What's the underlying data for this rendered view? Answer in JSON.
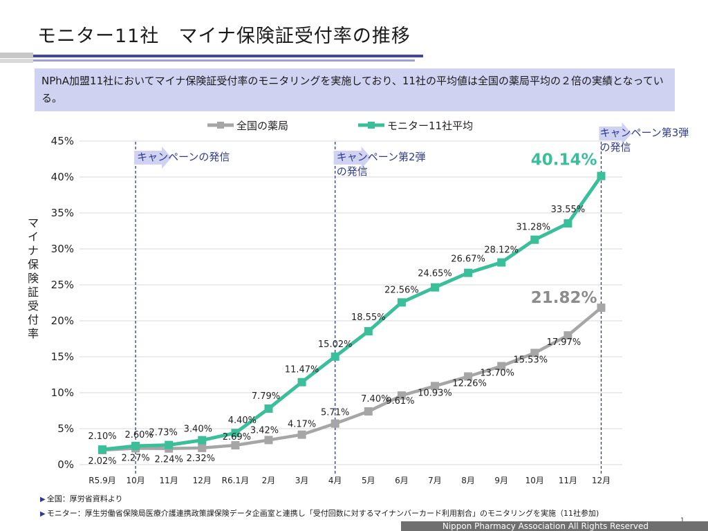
{
  "header": {
    "title": "モニター11社　マイナ保険証受付率の推移"
  },
  "summary": {
    "text": "NPhA加盟11社においてマイナ保険証受付率のモニタリングを実施しており、11社の平均値は全国の薬局平均の２倍の実績となっている。"
  },
  "chart_data": {
    "type": "line",
    "title": "",
    "xlabel": "",
    "ylabel": "マイナ保険証受付率",
    "categories": [
      "R5.9月",
      "10月",
      "11月",
      "12月",
      "R6.1月",
      "2月",
      "3月",
      "4月",
      "5月",
      "6月",
      "7月",
      "8月",
      "9月",
      "10月",
      "11月",
      "12月"
    ],
    "ylim": [
      0,
      45
    ],
    "y_ticks": [
      "0%",
      "5%",
      "10%",
      "15%",
      "20%",
      "25%",
      "30%",
      "35%",
      "40%",
      "45%"
    ],
    "grid": true,
    "legend_position": "top",
    "series": [
      {
        "name": "全国の薬局",
        "color": "#a6a6a6",
        "values": [
          2.02,
          2.27,
          2.24,
          2.32,
          2.69,
          3.42,
          4.17,
          5.71,
          7.4,
          9.61,
          10.93,
          12.26,
          13.7,
          15.53,
          17.97,
          21.82
        ],
        "labels": [
          "2.02%",
          "2.27%",
          "2.24%",
          "2.32%",
          "2.69%",
          "3.42%",
          "4.17%",
          "5.71%",
          "7.40%",
          "9.61%",
          "10.93%",
          "12.26%",
          "13.70%",
          "15.53%",
          "17.97%",
          "21.82%"
        ]
      },
      {
        "name": "モニター11社平均",
        "color": "#3bbf9a",
        "values": [
          2.1,
          2.6,
          2.73,
          3.4,
          4.4,
          7.79,
          11.47,
          15.02,
          18.55,
          22.56,
          24.65,
          26.67,
          28.12,
          31.28,
          33.55,
          40.14
        ],
        "labels": [
          "2.10%",
          "2.60%",
          "2.73%",
          "3.40%",
          "4.40%",
          "7.79%",
          "11.47%",
          "15.02%",
          "18.55%",
          "22.56%",
          "24.65%",
          "26.67%",
          "28.12%",
          "31.28%",
          "33.55%",
          "40.14%"
        ]
      }
    ],
    "annotations": [
      {
        "at_index": 1,
        "lines": [
          "キャンペーンの発信"
        ]
      },
      {
        "at_index": 7,
        "lines": [
          "キャンペーン第2弾",
          "の発信"
        ]
      },
      {
        "at_index": 15,
        "lines": [
          "キャンペーン第3弾",
          "の発信"
        ]
      }
    ]
  },
  "footnotes": {
    "line1": "全国：厚労省資料より",
    "line2": "モニター：厚生労働省保険局医療介護連携政策課保険データ企画室と連携し「受付回数に対するマイナンバーカード利用割合」のモニタリングを実施（11社参加)"
  },
  "footer": {
    "page_number": "1",
    "copyright": "Nippon Pharmacy Association All Rights Reserved"
  }
}
